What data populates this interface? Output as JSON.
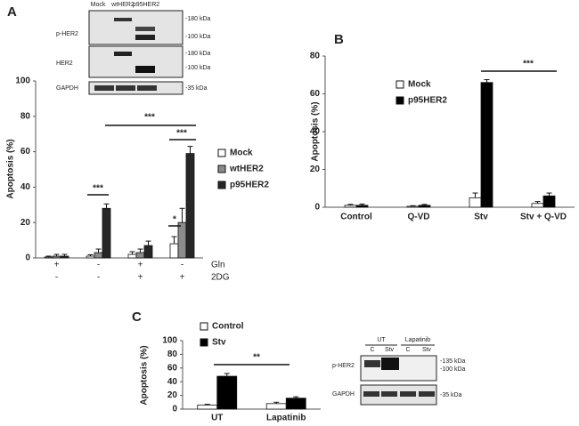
{
  "chart_data": [
    {
      "type": "bar",
      "panel_label": "A",
      "ylabel": "Apoptosis (%)",
      "ylim": [
        0,
        100
      ],
      "yticks": [
        0,
        20,
        40,
        60,
        80,
        100
      ],
      "condition_rows": [
        {
          "label": "Gln",
          "values": [
            "+",
            "-",
            "+",
            "-"
          ]
        },
        {
          "label": "2DG",
          "values": [
            "-",
            "-",
            "+",
            "+"
          ]
        }
      ],
      "series": [
        {
          "name": "Mock",
          "color": "#ffffff",
          "values": [
            0.5,
            1,
            2,
            8
          ],
          "errors": [
            0.5,
            0.8,
            1.5,
            4
          ]
        },
        {
          "name": "wtHER2",
          "color": "#8c8c8c",
          "values": [
            1,
            3,
            3,
            20
          ],
          "errors": [
            1,
            2,
            2,
            8
          ]
        },
        {
          "name": "p95HER2",
          "color": "#262626",
          "values": [
            1,
            28,
            7,
            59
          ],
          "errors": [
            1,
            2.5,
            2.5,
            4
          ]
        }
      ],
      "annotations": [
        "***",
        "***",
        "*",
        "***"
      ],
      "blot": {
        "lanes": [
          "Mock",
          "wtHER2",
          "p95HER2"
        ],
        "rows": [
          "p-HER2",
          "HER2",
          "GAPDH"
        ],
        "markers": [
          "-180 kDa",
          "-100 kDa",
          "-180 kDa",
          "-100 kDa",
          "-35 kDa"
        ]
      }
    },
    {
      "type": "bar",
      "panel_label": "B",
      "ylabel": "Apoptosis (%)",
      "ylim": [
        0,
        80
      ],
      "yticks": [
        0,
        20,
        40,
        60,
        80
      ],
      "categories": [
        "Control",
        "Q-VD",
        "Stv",
        "Stv + Q-VD"
      ],
      "series": [
        {
          "name": "Mock",
          "color": "#ffffff",
          "values": [
            1,
            0.5,
            5,
            2
          ],
          "errors": [
            0.5,
            0.3,
            2.5,
            1
          ]
        },
        {
          "name": "p95HER2",
          "color": "#000000",
          "values": [
            1,
            1,
            66,
            6
          ],
          "errors": [
            0.7,
            0.5,
            1.5,
            1.5
          ]
        }
      ],
      "annotations": [
        "***"
      ]
    },
    {
      "type": "bar",
      "panel_label": "C",
      "ylabel": "Apoptosis (%)",
      "ylim": [
        0,
        100
      ],
      "yticks": [
        0,
        20,
        40,
        60,
        80,
        100
      ],
      "categories": [
        "UT",
        "Lapatinib"
      ],
      "series": [
        {
          "name": "Control",
          "color": "#ffffff",
          "values": [
            6,
            8
          ],
          "errors": [
            1,
            2
          ]
        },
        {
          "name": "Stv",
          "color": "#000000",
          "values": [
            48,
            16
          ],
          "errors": [
            4,
            2
          ]
        }
      ],
      "annotations": [
        "**"
      ],
      "blot": {
        "groups": [
          "UT",
          "Lapatinib"
        ],
        "lanes": [
          "C",
          "Stv",
          "C",
          "Stv"
        ],
        "rows": [
          "p-HER2",
          "GAPDH"
        ],
        "markers": [
          "-135 kDa",
          "-100 kDa",
          "-35 kDa"
        ]
      }
    }
  ]
}
